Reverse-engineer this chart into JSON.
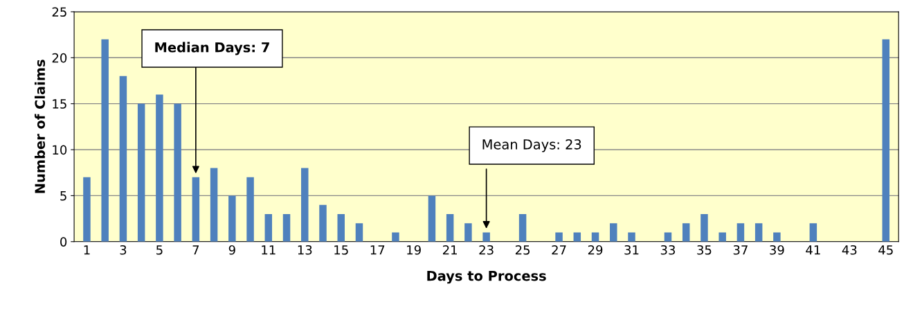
{
  "chart_data": {
    "type": "bar",
    "xlabel": "Days to Process",
    "ylabel": "Number of Claims",
    "categories": [
      "1",
      null,
      "3",
      null,
      "5",
      null,
      "7",
      null,
      "9",
      null,
      "11",
      null,
      "13",
      null,
      "15",
      null,
      "17",
      null,
      "19",
      null,
      "21",
      null,
      "23",
      null,
      "25",
      null,
      "27",
      null,
      "29",
      null,
      "31",
      null,
      "33",
      null,
      "35",
      null,
      "37",
      null,
      "39",
      null,
      "41",
      null,
      "43",
      null,
      "45"
    ],
    "values": [
      7,
      22,
      18,
      15,
      16,
      15,
      7,
      8,
      5,
      7,
      3,
      3,
      8,
      4,
      3,
      2,
      0,
      1,
      0,
      5,
      3,
      2,
      1,
      0,
      3,
      0,
      1,
      1,
      1,
      2,
      1,
      0,
      1,
      2,
      3,
      1,
      2,
      2,
      1,
      0,
      2,
      0,
      0,
      0,
      22
    ],
    "color": "#4f81bd",
    "ylim": [
      0,
      25
    ],
    "yticks": [
      0,
      5,
      10,
      15,
      20,
      25
    ],
    "grid": "y",
    "legend": false,
    "annotations": [
      {
        "text": "Median Days: 7",
        "x": "7",
        "y": 7
      },
      {
        "text": "Mean Days: 23",
        "x": "23",
        "y": 1
      }
    ]
  }
}
